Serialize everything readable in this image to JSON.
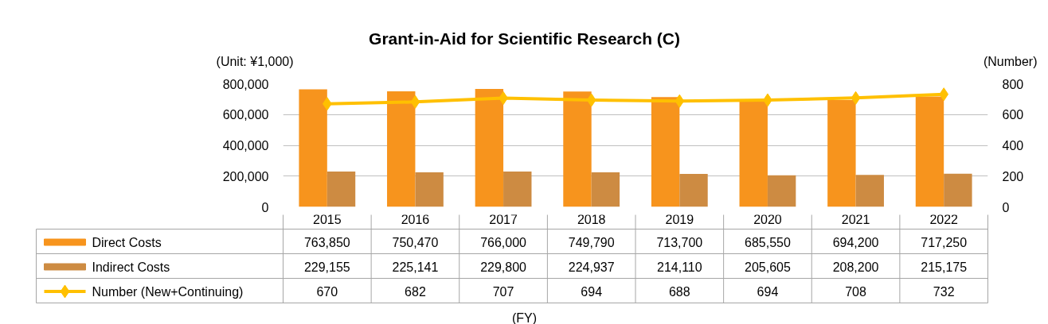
{
  "chart_data": {
    "type": "bar",
    "title": "Grant-in-Aid for Scientific Research (C)",
    "ylabel": "(Unit: ¥1,000)",
    "y2label": "(Number)",
    "annotations": [
      "(FY)"
    ],
    "categories": [
      "2015",
      "2016",
      "2017",
      "2018",
      "2019",
      "2020",
      "2021",
      "2022"
    ],
    "series": [
      {
        "name": "Direct Costs",
        "color": "#f7941d",
        "values": [
          763850,
          750470,
          766000,
          749790,
          713700,
          685550,
          694200,
          717250
        ],
        "value_labels": [
          "763,850",
          "750,470",
          "766,000",
          "749,790",
          "713,700",
          "685,550",
          "694,200",
          "717,250"
        ]
      },
      {
        "name": "Indirect Costs",
        "color": "#cd8b42",
        "values": [
          229155,
          225141,
          229800,
          224937,
          214110,
          205605,
          208200,
          215175
        ],
        "value_labels": [
          "229,155",
          "225,141",
          "229,800",
          "224,937",
          "214,110",
          "205,605",
          "208,200",
          "215,175"
        ]
      },
      {
        "name": "Number (New+Continuing)",
        "type": "line",
        "axis": "y2",
        "color": "#ffc000",
        "marker": "diamond",
        "values": [
          670,
          682,
          707,
          694,
          688,
          694,
          708,
          732
        ],
        "value_labels": [
          "670",
          "682",
          "707",
          "694",
          "688",
          "694",
          "708",
          "732"
        ]
      }
    ],
    "ylim": [
      0,
      800000
    ],
    "yticks": [
      {
        "value": 0,
        "label": "0"
      },
      {
        "value": 200000,
        "label": "200,000"
      },
      {
        "value": 400000,
        "label": "400,000"
      },
      {
        "value": 600000,
        "label": "600,000"
      },
      {
        "value": 800000,
        "label": "800,000"
      }
    ],
    "y2lim": [
      0,
      800
    ],
    "y2ticks": [
      0,
      200,
      400,
      600,
      800
    ],
    "grid": "y",
    "legend": "bottom"
  }
}
